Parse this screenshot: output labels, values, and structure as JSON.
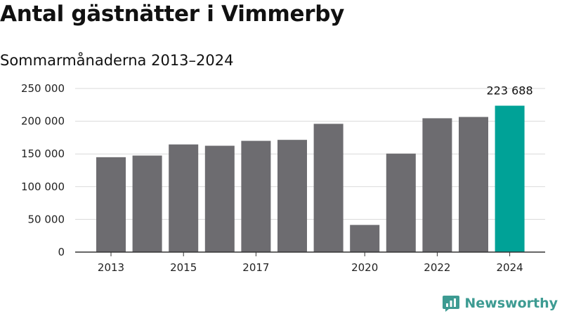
{
  "title": "Antal gästnätter i Vimmerby",
  "subtitle": "Sommarmånaderna 2013–2024",
  "brand": {
    "name": "Newsworthy",
    "icon": "newsworthy-logo-icon",
    "color": "#3d9b92"
  },
  "colors": {
    "bar": "#6d6c70",
    "highlight": "#00a297",
    "grid": "#d9d9d9"
  },
  "chart_data": {
    "type": "bar",
    "title": "Antal gästnätter i Vimmerby",
    "subtitle": "Sommarmånaderna 2013–2024",
    "categories": [
      "2013",
      "2014",
      "2015",
      "2016",
      "2017",
      "2018",
      "2019",
      "2020",
      "2021",
      "2022",
      "2023",
      "2024"
    ],
    "values": [
      145000,
      147500,
      164500,
      162500,
      170000,
      171500,
      196000,
      41500,
      150500,
      204500,
      206500,
      223688
    ],
    "x_tick_labels": [
      "2013",
      "2015",
      "2017",
      "2020",
      "2022",
      "2024"
    ],
    "y_ticks": [
      0,
      50000,
      100000,
      150000,
      200000,
      250000
    ],
    "y_tick_labels": [
      "0",
      "50 000",
      "100 000",
      "150 000",
      "200 000",
      "250 000"
    ],
    "ylim": [
      0,
      250000
    ],
    "highlight": {
      "category": "2024",
      "label": "223 688"
    },
    "grid": true,
    "xlabel": "",
    "ylabel": ""
  }
}
